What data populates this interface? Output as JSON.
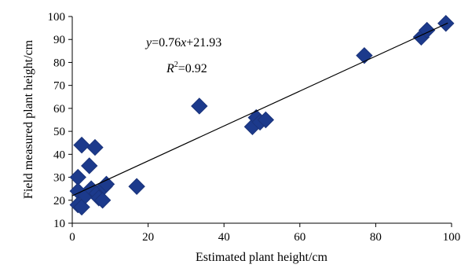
{
  "chart_data": {
    "type": "scatter",
    "xlabel": "Estimated plant height/cm",
    "ylabel": "Field measured plant height/cm",
    "xlim": [
      0,
      100
    ],
    "ylim": [
      10,
      100
    ],
    "xticks": [
      0,
      20,
      40,
      60,
      80,
      100
    ],
    "yticks": [
      10,
      20,
      30,
      40,
      50,
      60,
      70,
      80,
      90,
      100
    ],
    "grid": false,
    "marker": "diamond",
    "marker_color": "#1c3a8c",
    "points": [
      {
        "x": 1.5,
        "y": 30
      },
      {
        "x": 1.5,
        "y": 24
      },
      {
        "x": 1.5,
        "y": 18
      },
      {
        "x": 2.5,
        "y": 17
      },
      {
        "x": 2.5,
        "y": 44
      },
      {
        "x": 3.5,
        "y": 22
      },
      {
        "x": 4.5,
        "y": 35
      },
      {
        "x": 5,
        "y": 25
      },
      {
        "x": 6,
        "y": 43
      },
      {
        "x": 6.5,
        "y": 23
      },
      {
        "x": 7,
        "y": 21
      },
      {
        "x": 8,
        "y": 20
      },
      {
        "x": 8.5,
        "y": 26
      },
      {
        "x": 9,
        "y": 27
      },
      {
        "x": 17,
        "y": 26
      },
      {
        "x": 33.5,
        "y": 61
      },
      {
        "x": 47.5,
        "y": 52
      },
      {
        "x": 48.5,
        "y": 56
      },
      {
        "x": 49.5,
        "y": 54
      },
      {
        "x": 51,
        "y": 55
      },
      {
        "x": 77,
        "y": 83
      },
      {
        "x": 92,
        "y": 91
      },
      {
        "x": 93.5,
        "y": 94
      },
      {
        "x": 98.5,
        "y": 97
      }
    ],
    "trendline": {
      "slope": 0.76,
      "intercept": 21.93,
      "x_range": [
        0,
        99
      ]
    },
    "annotations": {
      "equation": {
        "y_var": "y",
        "eq1": "=0.76",
        "x_var": "x",
        "eq2": "+21.93"
      },
      "r2": {
        "r": "R",
        "sup": "2",
        "rest": "=0.92"
      }
    }
  }
}
